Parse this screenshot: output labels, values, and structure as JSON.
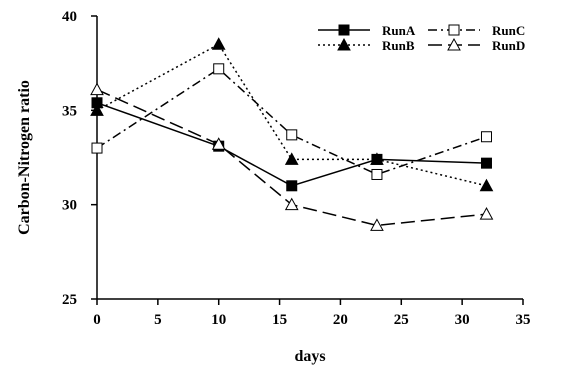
{
  "chart_data": {
    "type": "line",
    "title": "",
    "xlabel": "days",
    "ylabel": "Carbon-Nitrogen ratio",
    "xlim": [
      0,
      35
    ],
    "ylim": [
      25,
      40
    ],
    "xticks": [
      0,
      5,
      10,
      15,
      20,
      25,
      30,
      35
    ],
    "yticks": [
      25,
      30,
      35,
      40
    ],
    "grid": false,
    "legend_position": "top-right",
    "series": [
      {
        "name": "RunA",
        "marker": "filled-square",
        "line": "solid",
        "x": [
          0,
          10,
          16,
          23,
          32
        ],
        "y": [
          35.4,
          33.1,
          31.0,
          32.4,
          32.2
        ]
      },
      {
        "name": "RunB",
        "marker": "filled-triangle",
        "line": "dotted",
        "x": [
          0,
          10,
          16,
          23,
          32
        ],
        "y": [
          35.0,
          38.5,
          32.4,
          32.4,
          31.0
        ]
      },
      {
        "name": "RunC",
        "marker": "open-square",
        "line": "dash-dot",
        "x": [
          0,
          10,
          16,
          23,
          32
        ],
        "y": [
          33.0,
          37.2,
          33.7,
          31.6,
          33.6
        ]
      },
      {
        "name": "RunD",
        "marker": "open-triangle",
        "line": "long-dash",
        "x": [
          0,
          10,
          16,
          23,
          32
        ],
        "y": [
          36.1,
          33.2,
          30.0,
          28.9,
          29.5
        ]
      }
    ]
  }
}
